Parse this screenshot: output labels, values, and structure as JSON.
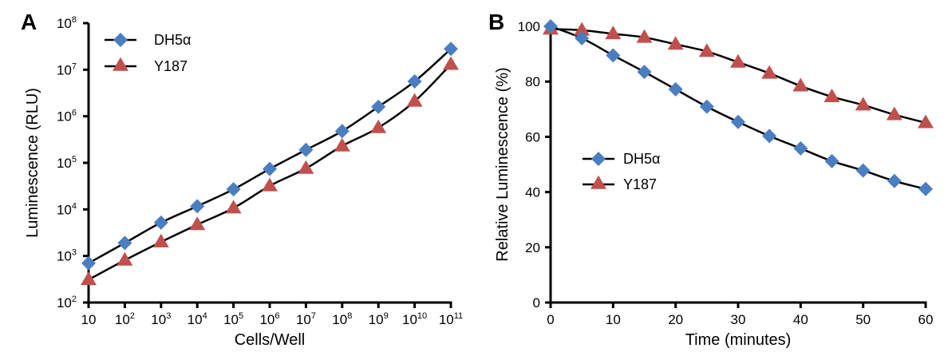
{
  "chart_data": [
    {
      "panel": "A",
      "type": "line",
      "title": "",
      "xlabel": "Cells/Well",
      "ylabel": "Luminescence (RLU)",
      "xscale": "log",
      "yscale": "log",
      "x_tick_labels": [
        {
          "base": "10",
          "exp": ""
        },
        {
          "base": "10",
          "exp": "2"
        },
        {
          "base": "10",
          "exp": "3"
        },
        {
          "base": "10",
          "exp": "4"
        },
        {
          "base": "10",
          "exp": "5"
        },
        {
          "base": "10",
          "exp": "6"
        },
        {
          "base": "10",
          "exp": "7"
        },
        {
          "base": "10",
          "exp": "8"
        },
        {
          "base": "10",
          "exp": "9"
        },
        {
          "base": "10",
          "exp": "10"
        },
        {
          "base": "10",
          "exp": "11"
        }
      ],
      "y_tick_labels": [
        {
          "base": "10",
          "exp": "2"
        },
        {
          "base": "10",
          "exp": "3"
        },
        {
          "base": "10",
          "exp": "4"
        },
        {
          "base": "10",
          "exp": "5"
        },
        {
          "base": "10",
          "exp": "6"
        },
        {
          "base": "10",
          "exp": "7"
        },
        {
          "base": "10",
          "exp": "8"
        }
      ],
      "x": [
        10,
        100,
        1000,
        10000,
        100000,
        1000000,
        10000000,
        100000000,
        1000000000,
        10000000000,
        100000000000
      ],
      "xlim": [
        10,
        100000000000
      ],
      "ylim": [
        100,
        100000000
      ],
      "grid": false,
      "legend_position": "top-left",
      "series": [
        {
          "name": "DH5α",
          "marker": "diamond",
          "color": "#4A7EC0",
          "values": [
            700,
            1900,
            5200,
            11700,
            27000,
            74000,
            190000,
            480000,
            1600000,
            5600000,
            28000000
          ]
        },
        {
          "name": "Y187",
          "marker": "triangle",
          "color": "#C0504D",
          "values": [
            310,
            810,
            2000,
            4700,
            10700,
            32000,
            76000,
            230000,
            570000,
            2100000,
            13000000
          ]
        }
      ]
    },
    {
      "panel": "B",
      "type": "line",
      "title": "",
      "xlabel": "Time (minutes)",
      "ylabel": "Relative Luminescence (%)",
      "x_ticks": [
        0,
        10,
        20,
        30,
        40,
        50,
        60
      ],
      "y_ticks": [
        0,
        20,
        40,
        60,
        80,
        100
      ],
      "x": [
        0,
        5,
        10,
        15,
        20,
        25,
        30,
        35,
        40,
        45,
        50,
        55,
        60
      ],
      "xlim": [
        0,
        60
      ],
      "ylim": [
        0,
        100
      ],
      "grid": false,
      "legend_position": "center-left",
      "series": [
        {
          "name": "DH5α",
          "marker": "diamond",
          "color": "#4A7EC0",
          "values": [
            100,
            95.7,
            89.5,
            83.5,
            77.2,
            70.9,
            65.4,
            60.3,
            55.8,
            51.2,
            47.8,
            44.0,
            41.1
          ]
        },
        {
          "name": "Y187",
          "marker": "triangle",
          "color": "#C0504D",
          "values": [
            99,
            98.6,
            97.3,
            96.0,
            93.5,
            90.9,
            87.0,
            83.0,
            78.4,
            74.5,
            71.5,
            68.0,
            65.1
          ]
        }
      ]
    }
  ]
}
